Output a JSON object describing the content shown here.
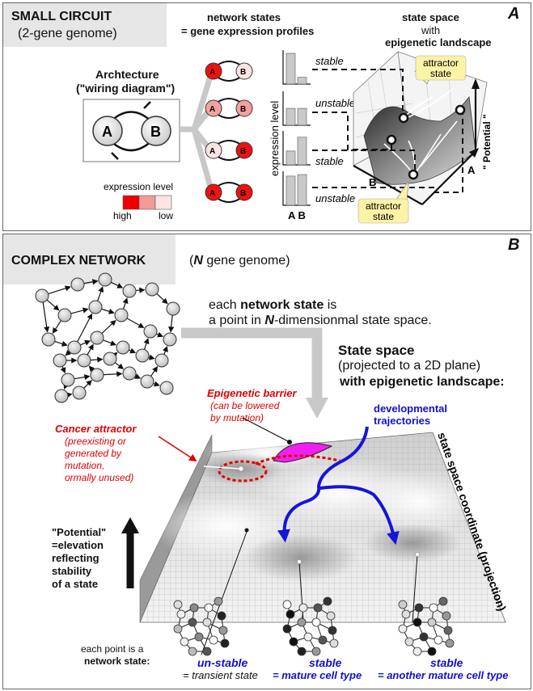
{
  "panel_a": {
    "letter": "A",
    "title": "SMALL CIRCUIT",
    "subtitle": "(2-gene genome)",
    "architecture_label_1": "Archtecture",
    "architecture_label_2": "(\"wiring diagram\")",
    "gene_a": "A",
    "gene_b": "B",
    "network_states_1": "network states",
    "network_states_2": "= gene expression profiles",
    "state_space_1": "state space",
    "state_space_2": "with",
    "state_space_3": "epigenetic landscape",
    "expression_axis": "expression  level",
    "bar_x_labels": "A  B",
    "legend_title": "expression level",
    "legend_high": "high",
    "legend_low": "low",
    "legend_colors": [
      "#ee0000",
      "#f59a9a",
      "#fde4e4"
    ],
    "states": [
      {
        "label": "stable",
        "a_color": "#ee1111",
        "b_color": "#fde4e4",
        "a": 1.0,
        "b": 0.22
      },
      {
        "label": "unstable",
        "a_color": "#f4a0a0",
        "b_color": "#f4a0a0",
        "a": 0.55,
        "b": 0.55
      },
      {
        "label": "stable",
        "a_color": "#fde4e4",
        "b_color": "#ee1111",
        "a": 0.45,
        "b": 0.9
      },
      {
        "label": "unstable",
        "a_color": "#ee1111",
        "b_color": "#ee1111",
        "a": 0.95,
        "b": 1.0
      }
    ],
    "attractor_1": "attractor\nstate",
    "attractor_2": "attractor\nstate",
    "potential_label": "\" Potential \"",
    "landscape_axis_a": "A",
    "landscape_axis_b": "B"
  },
  "panel_b": {
    "letter": "B",
    "title": "COMPLEX NETWORK",
    "subtitle_pre": "(",
    "subtitle_n": "N",
    "subtitle_post": " gene genome)",
    "each_state_1_pre": "each ",
    "each_state_1_bold": "network state",
    "each_state_1_post": " is",
    "each_state_2_pre": "a point in ",
    "each_state_2_bold": "N",
    "each_state_2_post": "-dimensionmal state space.",
    "state_space_title": "State space",
    "state_space_sub": "(projected to a 2D plane)",
    "state_space_with": "with epigenetic landscape:",
    "barrier_title": "Epigenetic barrier",
    "barrier_sub_1": "(can be lowered",
    "barrier_sub_2": "by mutation)",
    "cancer_title": "Cancer attractor",
    "cancer_sub_1": "(preexisting or",
    "cancer_sub_2": "generated by",
    "cancer_sub_3": "mutation,",
    "cancer_sub_4": "ormally unused)",
    "dev_traj_1": "developmental",
    "dev_traj_2": "trajectories",
    "state_coord": "state space coordinate (projection)",
    "potential_1": "\"Potential\"",
    "potential_2": "=elevation",
    "potential_3": "reflecting",
    "potential_4": "stability",
    "potential_5": "of a state",
    "each_point_1": "each point is a",
    "each_point_2": "network state:",
    "unstable_label": "un-stable",
    "unstable_sub": "= transient state",
    "stable1_label": "stable",
    "stable1_sub": "= mature cell type",
    "stable2_label": "stable",
    "stable2_sub": "= another mature cell type"
  }
}
